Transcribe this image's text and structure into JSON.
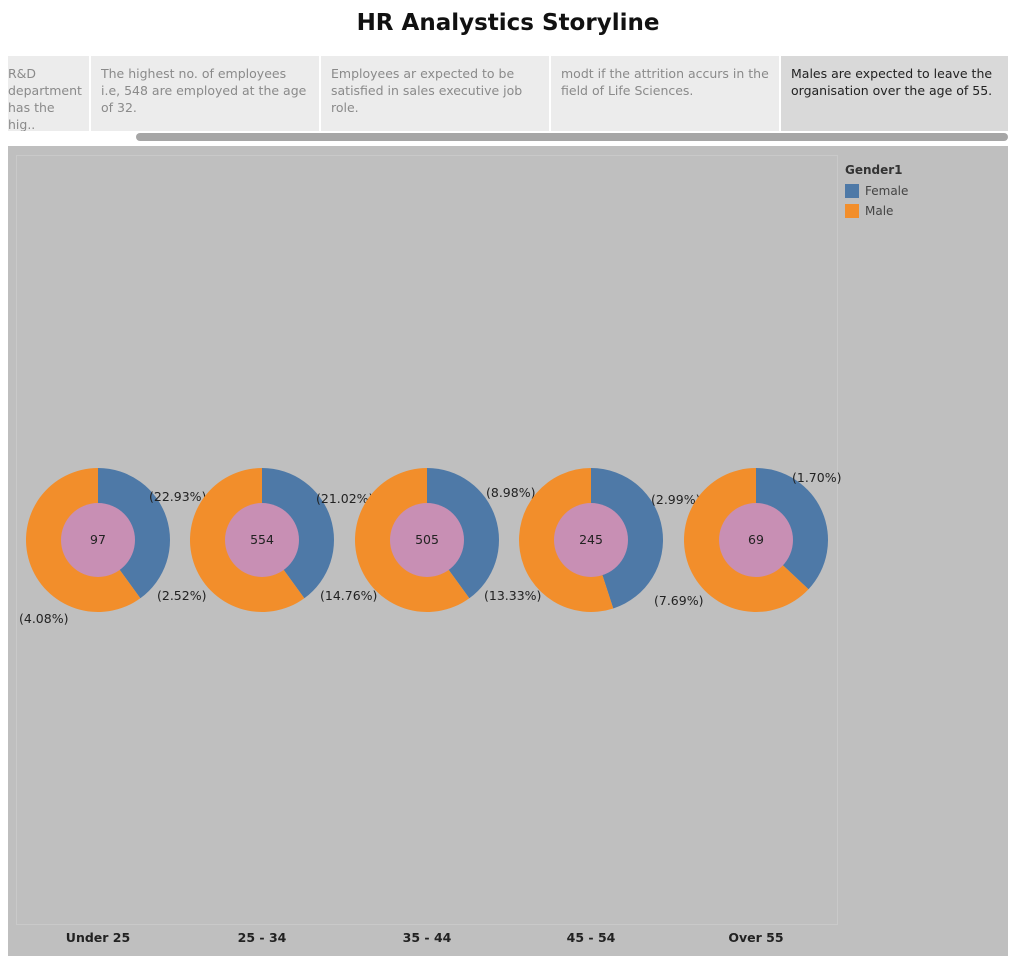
{
  "title": "HR  Analystics Storyline",
  "story_points": [
    {
      "text": "R&D department has the hig.."
    },
    {
      "text": "The highest no. of employees i.e, 548 are employed at the age of 32."
    },
    {
      "text": "Employees ar expected to be satisfied in sales executive job role."
    },
    {
      "text": "modt if the attrition accurs in the field of Life Sciences."
    },
    {
      "text": "Males are expected to leave the organisation over the age  of 55."
    }
  ],
  "legend": {
    "title": "Gender1",
    "items": [
      {
        "label": "Female",
        "color": "#4e79a7"
      },
      {
        "label": "Male",
        "color": "#f28e2b"
      }
    ]
  },
  "colors": {
    "female": "#4e79a7",
    "male": "#f28e2b",
    "center": "#c88fb4"
  },
  "chart_data": {
    "type": "pie",
    "legend_title": "Gender1",
    "legend_position": "top-right",
    "series_names": [
      "Female",
      "Male"
    ],
    "categories": [
      "Under 25",
      "25 - 34",
      "35 - 44",
      "45 - 54",
      "Over 55"
    ],
    "totals": [
      "97",
      "554",
      "505",
      "245",
      "69"
    ],
    "female_share": [
      0.4,
      0.4,
      0.4,
      0.45,
      0.37
    ],
    "male_share": [
      0.6,
      0.6,
      0.6,
      0.55,
      0.63
    ],
    "female_label": [
      "(22.93%)",
      "(21.02%)",
      "(8.98%)",
      "(2.99%)",
      "(1.70%)"
    ],
    "male_label": [
      "(2.52%)",
      "(14.76%)",
      "(13.33%)",
      "(7.69%)",
      ""
    ],
    "extra_label": [
      "(4.08%)",
      "",
      "",
      "",
      ""
    ]
  }
}
